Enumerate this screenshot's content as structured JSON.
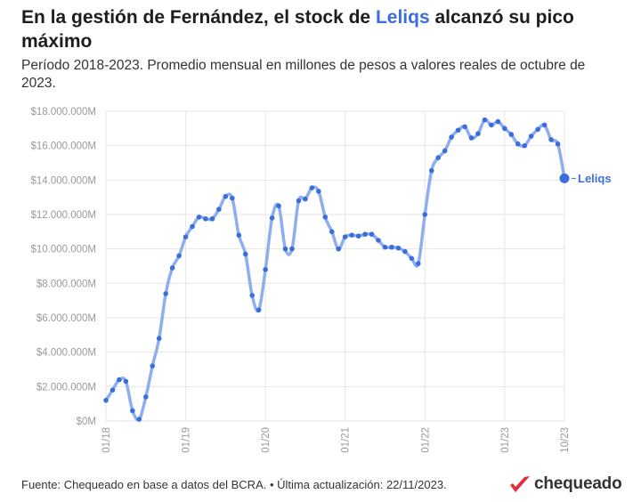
{
  "header": {
    "title_pre": "En la gestión de Fernández, el stock de ",
    "title_highlight": "Leliqs",
    "title_post": " alcanzó su pico máximo",
    "subtitle": "Período 2018-2023. Promedio mensual en millones de pesos a valores reales de octubre de 2023."
  },
  "footer": {
    "source": "Fuente: Chequeado en base a datos del BCRA. • Última actualización: 22/11/2023."
  },
  "logo": {
    "text": "chequeado",
    "mark_color": "#e0303e"
  },
  "colors": {
    "line": "#8eaef0",
    "dot": "#3a6fdb",
    "grid": "#e6e6e6",
    "axis_text": "#9a9a9a"
  },
  "chart_data": {
    "type": "line",
    "series": [
      {
        "name": "Leliqs",
        "values": [
          1200000,
          1800000,
          2400000,
          2300000,
          600000,
          100000,
          1400000,
          3200000,
          4800000,
          7400000,
          8900000,
          9600000,
          10700000,
          11300000,
          11850000,
          11750000,
          11750000,
          12300000,
          13050000,
          12950000,
          10800000,
          9700000,
          7300000,
          6450000,
          8800000,
          11800000,
          12500000,
          10000000,
          10000000,
          12800000,
          12900000,
          13550000,
          13350000,
          11850000,
          11000000,
          10000000,
          10700000,
          10800000,
          10750000,
          10850000,
          10850000,
          10500000,
          10100000,
          10100000,
          10050000,
          9850000,
          9450000,
          9150000,
          12000000,
          14550000,
          15300000,
          15700000,
          16500000,
          16900000,
          17100000,
          16450000,
          16700000,
          17500000,
          17200000,
          17400000,
          17000000,
          16650000,
          16100000,
          16000000,
          16550000,
          16950000,
          17200000,
          16350000,
          16100000,
          14100000
        ]
      }
    ],
    "x_tick_labels": [
      "01/18",
      "01/19",
      "01/20",
      "01/21",
      "01/22",
      "01/23",
      "10/23"
    ],
    "y_tick_labels": [
      "$0M",
      "$2.000.000M",
      "$4.000.000M",
      "$6.000.000M",
      "$8.000.000M",
      "$10.000.000M",
      "$12.000.000M",
      "$14.000.000M",
      "$16.000.000M",
      "$18.000.000M"
    ],
    "ylim": [
      0,
      18000000
    ],
    "x_range": [
      "01/18",
      "10/23"
    ],
    "grid": true,
    "end_label": "Leliqs"
  }
}
